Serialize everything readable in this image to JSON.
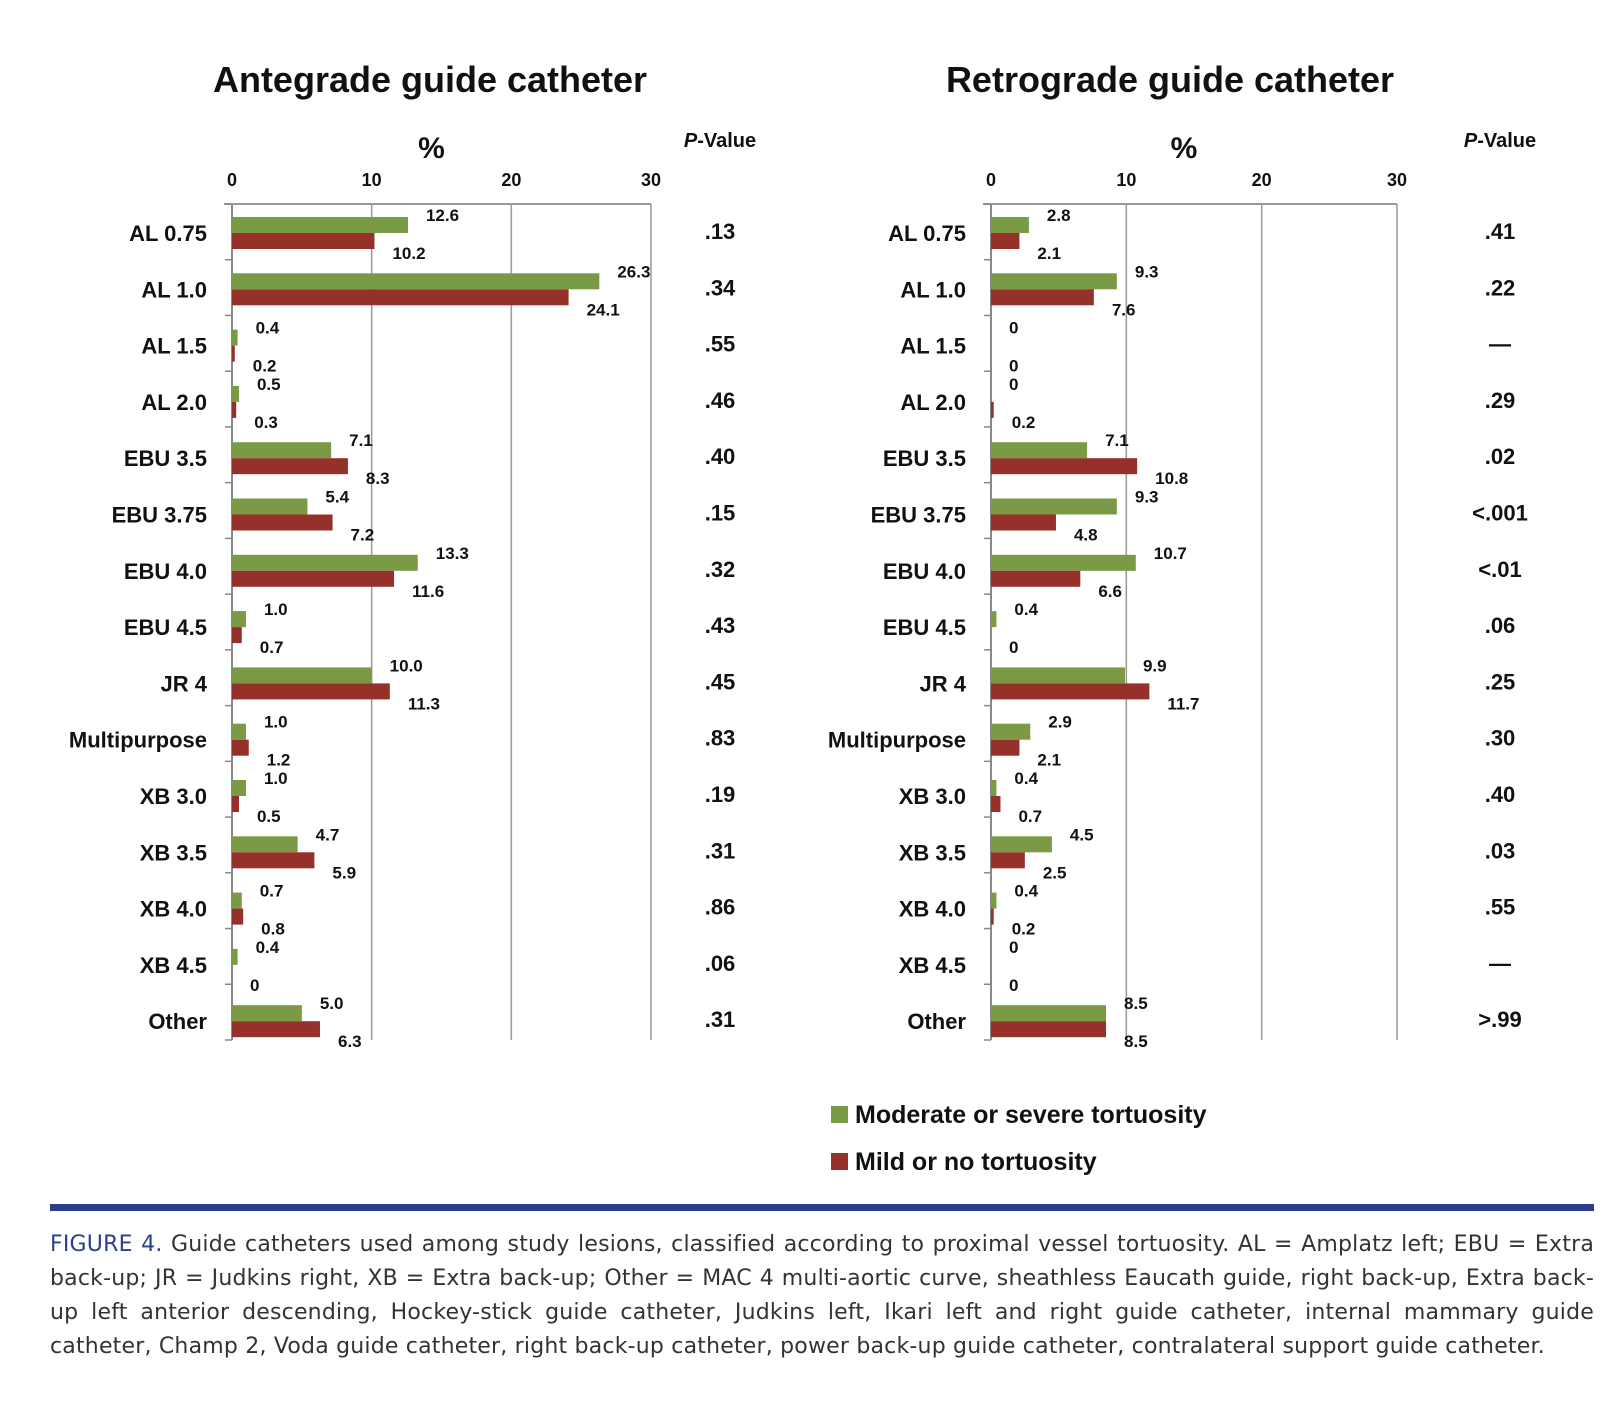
{
  "legend": {
    "entries": [
      {
        "name": "Moderate or severe tortuosity",
        "color": "#7a9a45"
      },
      {
        "name": "Mild or no tortuosity",
        "color": "#96302a"
      }
    ]
  },
  "caption": {
    "label": "FIGURE 4.",
    "text": " Guide catheters used among study lesions, classified according to proximal vessel tortuosity. AL = Amplatz left; EBU = Extra back-up; JR = Judkins right, XB = Extra back-up; Other = MAC 4 multi-aortic curve, sheathless Eaucath guide, right back-up, Extra back-up left anterior descending, Hockey-stick guide catheter, Judkins left, Ikari left and right guide catheter, internal mammary guide catheter, Champ 2, Voda guide catheter, right back-up catheter, power back-up guide catheter, contralateral support guide catheter."
  },
  "chart_data": [
    {
      "type": "bar",
      "orientation": "horizontal",
      "title": "Antegrade guide catheter",
      "xlabel": "%",
      "xlim": [
        0,
        30
      ],
      "xticks": [
        "0",
        "10",
        "20",
        "30"
      ],
      "grid": true,
      "pvalue_header": "P-Value",
      "categories": [
        "AL 0.75",
        "AL 1.0",
        "AL 1.5",
        "AL 2.0",
        "EBU 3.5",
        "EBU 3.75",
        "EBU 4.0",
        "EBU 4.5",
        "JR 4",
        "Multipurpose",
        "XB 3.0",
        "XB 3.5",
        "XB 4.0",
        "XB 4.5",
        "Other"
      ],
      "series": [
        {
          "name": "Moderate or severe tortuosity",
          "values": [
            12.6,
            26.3,
            0.4,
            0.5,
            7.1,
            5.4,
            13.3,
            1.0,
            10.0,
            1.0,
            1.0,
            4.7,
            0.7,
            0.4,
            5.0
          ],
          "labels": [
            "12.6",
            "26.3",
            "0.4",
            "0.5",
            "7.1",
            "5.4",
            "13.3",
            "1.0",
            "10.0",
            "1.0",
            "1.0",
            "4.7",
            "0.7",
            "0.4",
            "5.0"
          ]
        },
        {
          "name": "Mild or no tortuosity",
          "values": [
            10.2,
            24.1,
            0.2,
            0.3,
            8.3,
            7.2,
            11.6,
            0.7,
            11.3,
            1.2,
            0.5,
            5.9,
            0.8,
            0,
            6.3
          ],
          "labels": [
            "10.2",
            "24.1",
            "0.2",
            "0.3",
            "8.3",
            "7.2",
            "11.6",
            "0.7",
            "11.3",
            "1.2",
            "0.5",
            "5.9",
            "0.8",
            "0",
            "6.3"
          ]
        }
      ],
      "pvalues": [
        ".13",
        ".34",
        ".55",
        ".46",
        ".40",
        ".15",
        ".32",
        ".43",
        ".45",
        ".83",
        ".19",
        ".31",
        ".86",
        ".06",
        ".31"
      ]
    },
    {
      "type": "bar",
      "orientation": "horizontal",
      "title": "Retrograde guide catheter",
      "xlabel": "%",
      "xlim": [
        0,
        30
      ],
      "xticks": [
        "0",
        "10",
        "20",
        "30"
      ],
      "grid": true,
      "pvalue_header": "P-Value",
      "categories": [
        "AL 0.75",
        "AL 1.0",
        "AL 1.5",
        "AL 2.0",
        "EBU 3.5",
        "EBU 3.75",
        "EBU 4.0",
        "EBU 4.5",
        "JR 4",
        "Multipurpose",
        "XB 3.0",
        "XB 3.5",
        "XB 4.0",
        "XB 4.5",
        "Other"
      ],
      "series": [
        {
          "name": "Moderate or severe tortuosity",
          "values": [
            2.8,
            9.3,
            0,
            0,
            7.1,
            9.3,
            10.7,
            0.4,
            9.9,
            2.9,
            0.4,
            4.5,
            0.4,
            0,
            8.5
          ],
          "labels": [
            "2.8",
            "9.3",
            "0",
            "0",
            "7.1",
            "9.3",
            "10.7",
            "0.4",
            "9.9",
            "2.9",
            "0.4",
            "4.5",
            "0.4",
            "0",
            "8.5"
          ]
        },
        {
          "name": "Mild or no tortuosity",
          "values": [
            2.1,
            7.6,
            0,
            0.2,
            10.8,
            4.8,
            6.6,
            0,
            11.7,
            2.1,
            0.7,
            2.5,
            0.2,
            0,
            8.5
          ],
          "labels": [
            "2.1",
            "7.6",
            "0",
            "0.2",
            "10.8",
            "4.8",
            "6.6",
            "0",
            "11.7",
            "2.1",
            "0.7",
            "2.5",
            "0.2",
            "0",
            "8.5"
          ]
        }
      ],
      "pvalues": [
        ".41",
        ".22",
        "—",
        ".29",
        ".02",
        "<.001",
        "<.01",
        ".06",
        ".25",
        ".30",
        ".40",
        ".03",
        ".55",
        "—",
        ">.99"
      ]
    }
  ]
}
